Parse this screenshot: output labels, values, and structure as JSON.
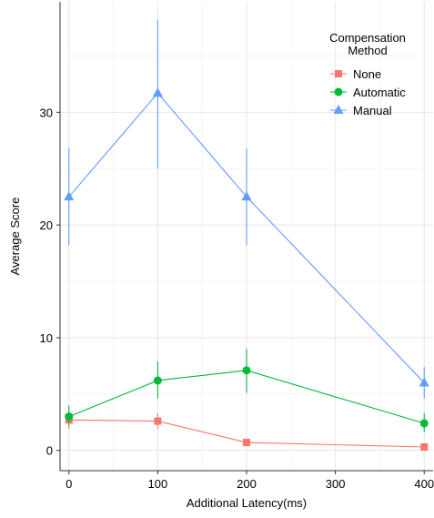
{
  "chart_data": {
    "type": "line",
    "xlabel": "Additional Latency(ms)",
    "ylabel": "Average Score",
    "xlim": [
      -10,
      410
    ],
    "ylim": [
      -1.8,
      39.8
    ],
    "x_ticks": [
      0,
      100,
      200,
      300,
      400
    ],
    "y_ticks": [
      0,
      10,
      20,
      30
    ],
    "x_minor": [
      50,
      150,
      250,
      350
    ],
    "y_minor": [
      5,
      15,
      25,
      35
    ],
    "grid": true,
    "legend": {
      "title_lines": [
        "Compensation",
        "Method"
      ],
      "position": "top-right"
    },
    "series": [
      {
        "name": "None",
        "color": "#F8766D",
        "marker": "square",
        "x": [
          0,
          100,
          200,
          400
        ],
        "y": [
          2.7,
          2.6,
          0.7,
          0.3
        ],
        "err_low": [
          1.9,
          1.9,
          0.4,
          0.1
        ],
        "err_high": [
          3.4,
          3.3,
          1.0,
          0.5
        ]
      },
      {
        "name": "Automatic",
        "color": "#00BA38",
        "marker": "circle",
        "x": [
          0,
          100,
          200,
          400
        ],
        "y": [
          3.0,
          6.2,
          7.1,
          2.4
        ],
        "err_low": [
          2.2,
          4.6,
          5.1,
          1.6
        ],
        "err_high": [
          4.0,
          7.9,
          9.0,
          3.3
        ]
      },
      {
        "name": "Manual",
        "color": "#619CFF",
        "marker": "triangle",
        "x": [
          0,
          100,
          200,
          400
        ],
        "y": [
          22.5,
          31.7,
          22.5,
          6.0
        ],
        "err_low": [
          18.2,
          25.0,
          18.2,
          4.6
        ],
        "err_high": [
          26.8,
          38.2,
          26.8,
          7.4
        ]
      }
    ]
  }
}
